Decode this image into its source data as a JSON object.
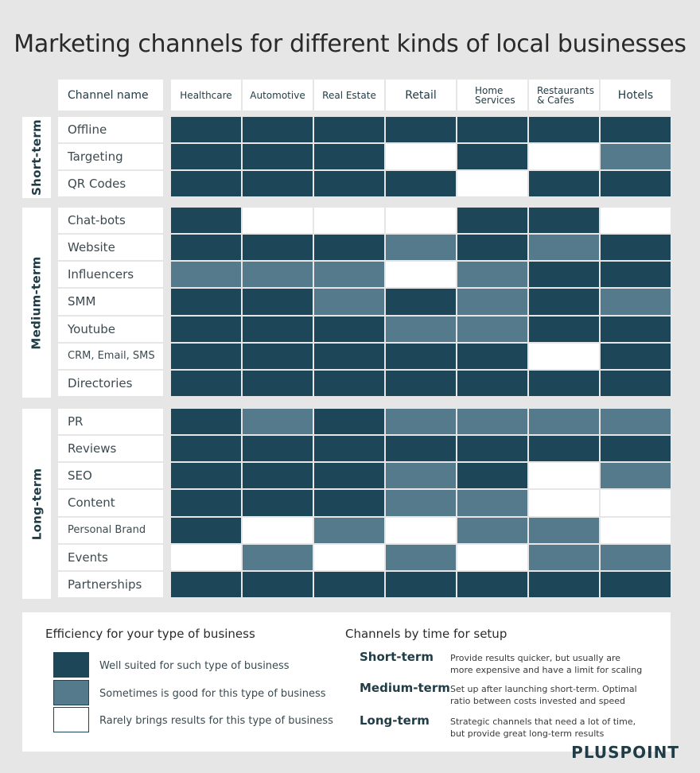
{
  "title": "Marketing channels for different kinds of local businesses",
  "chart_data": {
    "type": "heatmap",
    "corner_label": "Channel name",
    "columns": [
      "Healthcare",
      "Automotive",
      "Real Estate",
      "Retail",
      "Home Services",
      "Restaurants & Cafes",
      "Hotels"
    ],
    "column_display": [
      [
        "Healthcare"
      ],
      [
        "Automotive"
      ],
      [
        "Real Estate"
      ],
      [
        "Retail"
      ],
      [
        "Home",
        "Services"
      ],
      [
        "Restaurants",
        "& Cafes"
      ],
      [
        "Hotels"
      ]
    ],
    "levels": {
      "2": "Well suited for such type of business",
      "1": "Sometimes is good for this type of business",
      "0": "Rarely brings results for this type of business"
    },
    "colors": {
      "2": "#1d4658",
      "1": "#557a8b",
      "0": "#ffffff"
    },
    "groups": [
      {
        "name": "Short-term",
        "rows": [
          {
            "channel": "Offline",
            "values": [
              2,
              2,
              2,
              2,
              2,
              2,
              2
            ]
          },
          {
            "channel": "Targeting",
            "values": [
              2,
              2,
              2,
              0,
              2,
              0,
              1
            ]
          },
          {
            "channel": "QR Codes",
            "values": [
              2,
              2,
              2,
              2,
              0,
              2,
              2
            ]
          }
        ]
      },
      {
        "name": "Medium-term",
        "rows": [
          {
            "channel": "Chat-bots",
            "values": [
              2,
              0,
              0,
              0,
              2,
              2,
              0
            ]
          },
          {
            "channel": "Website",
            "values": [
              2,
              2,
              2,
              1,
              2,
              1,
              2
            ]
          },
          {
            "channel": "Influencers",
            "values": [
              1,
              1,
              1,
              0,
              1,
              2,
              2
            ]
          },
          {
            "channel": "SMM",
            "values": [
              2,
              2,
              1,
              2,
              1,
              2,
              1
            ]
          },
          {
            "channel": "Youtube",
            "values": [
              2,
              2,
              2,
              1,
              1,
              2,
              2
            ]
          },
          {
            "channel": "CRM, Email, SMS",
            "values": [
              2,
              2,
              2,
              2,
              2,
              0,
              2
            ]
          },
          {
            "channel": "Directories",
            "values": [
              2,
              2,
              2,
              2,
              2,
              2,
              2
            ]
          }
        ]
      },
      {
        "name": "Long-term",
        "rows": [
          {
            "channel": "PR",
            "values": [
              2,
              1,
              2,
              1,
              1,
              1,
              1
            ]
          },
          {
            "channel": "Reviews",
            "values": [
              2,
              2,
              2,
              2,
              2,
              2,
              2
            ]
          },
          {
            "channel": "SEO",
            "values": [
              2,
              2,
              2,
              1,
              2,
              0,
              1
            ]
          },
          {
            "channel": "Content",
            "values": [
              2,
              2,
              2,
              1,
              1,
              0,
              0
            ]
          },
          {
            "channel": "Personal Brand",
            "values": [
              2,
              0,
              1,
              0,
              1,
              1,
              0
            ]
          },
          {
            "channel": "Events",
            "values": [
              0,
              1,
              0,
              1,
              0,
              1,
              1
            ]
          },
          {
            "channel": "Partnerships",
            "values": [
              2,
              2,
              2,
              2,
              2,
              2,
              2
            ]
          }
        ]
      }
    ]
  },
  "legend": {
    "efficiency_title": "Efficiency for your type of business",
    "items": [
      {
        "level": 2,
        "text": "Well suited for such type of business"
      },
      {
        "level": 1,
        "text": "Sometimes is good for this type of business"
      },
      {
        "level": 0,
        "text": "Rarely brings results for this type of business"
      }
    ],
    "setup_title": "Channels by time for setup",
    "terms": [
      {
        "name": "Short-term",
        "desc": [
          "Provide results quicker, but usually are",
          "more expensive and have a limit for scaling"
        ]
      },
      {
        "name": "Medium-term",
        "desc": [
          "Set up after launching short-term. Optimal",
          "ratio between costs invested and speed"
        ]
      },
      {
        "name": "Long-term",
        "desc": [
          "Strategic channels that need a lot of time,",
          "but provide great long-term results"
        ]
      }
    ]
  },
  "brand": "PLUSPOINT"
}
